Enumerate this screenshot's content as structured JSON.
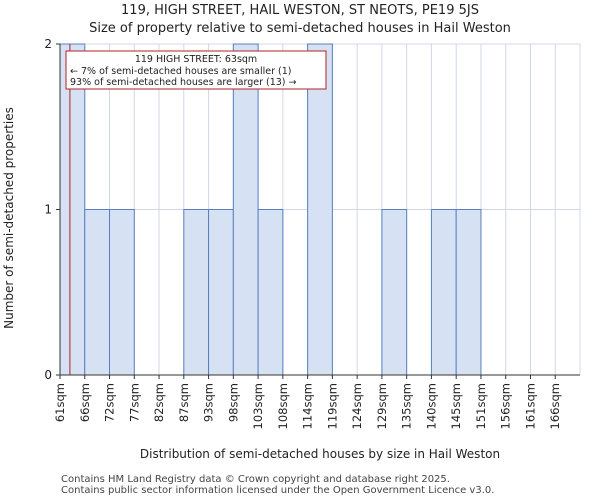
{
  "title": {
    "line1": "119, HIGH STREET, HAIL WESTON, ST NEOTS, PE19 5JS",
    "line2": "Size of property relative to semi-detached houses in Hail Weston"
  },
  "footer": {
    "line1": "Contains HM Land Registry data © Crown copyright and database right 2025.",
    "line2": "Contains public sector information licensed under the Open Government Licence v3.0."
  },
  "colors": {
    "bar_fill": "#d6e2f3",
    "bar_stroke": "#5b7fbf",
    "grid": "#d0d8e8",
    "marker": "#b22222",
    "annotation_border": "#b22222"
  },
  "chart_data": {
    "type": "bar",
    "categories": [
      "61sqm",
      "66sqm",
      "72sqm",
      "77sqm",
      "82sqm",
      "87sqm",
      "93sqm",
      "98sqm",
      "103sqm",
      "108sqm",
      "114sqm",
      "119sqm",
      "124sqm",
      "129sqm",
      "135sqm",
      "140sqm",
      "145sqm",
      "151sqm",
      "156sqm",
      "161sqm",
      "166sqm"
    ],
    "values": [
      2,
      1,
      1,
      0,
      0,
      1,
      1,
      2,
      1,
      0,
      2,
      0,
      0,
      1,
      0,
      1,
      1,
      0,
      0,
      0,
      0
    ],
    "xlabel": "Distribution of semi-detached houses by size in Hail Weston",
    "ylabel": "Number of semi-detached properties",
    "ylim": [
      0,
      2
    ],
    "yticks": [
      0,
      1,
      2
    ],
    "grid": true,
    "marker": {
      "value_sqm": 63
    },
    "annotation": {
      "line1": "119 HIGH STREET: 63sqm",
      "line2": "← 7% of semi-detached houses are smaller (1)",
      "line3": "93% of semi-detached houses are larger (13) →"
    }
  }
}
